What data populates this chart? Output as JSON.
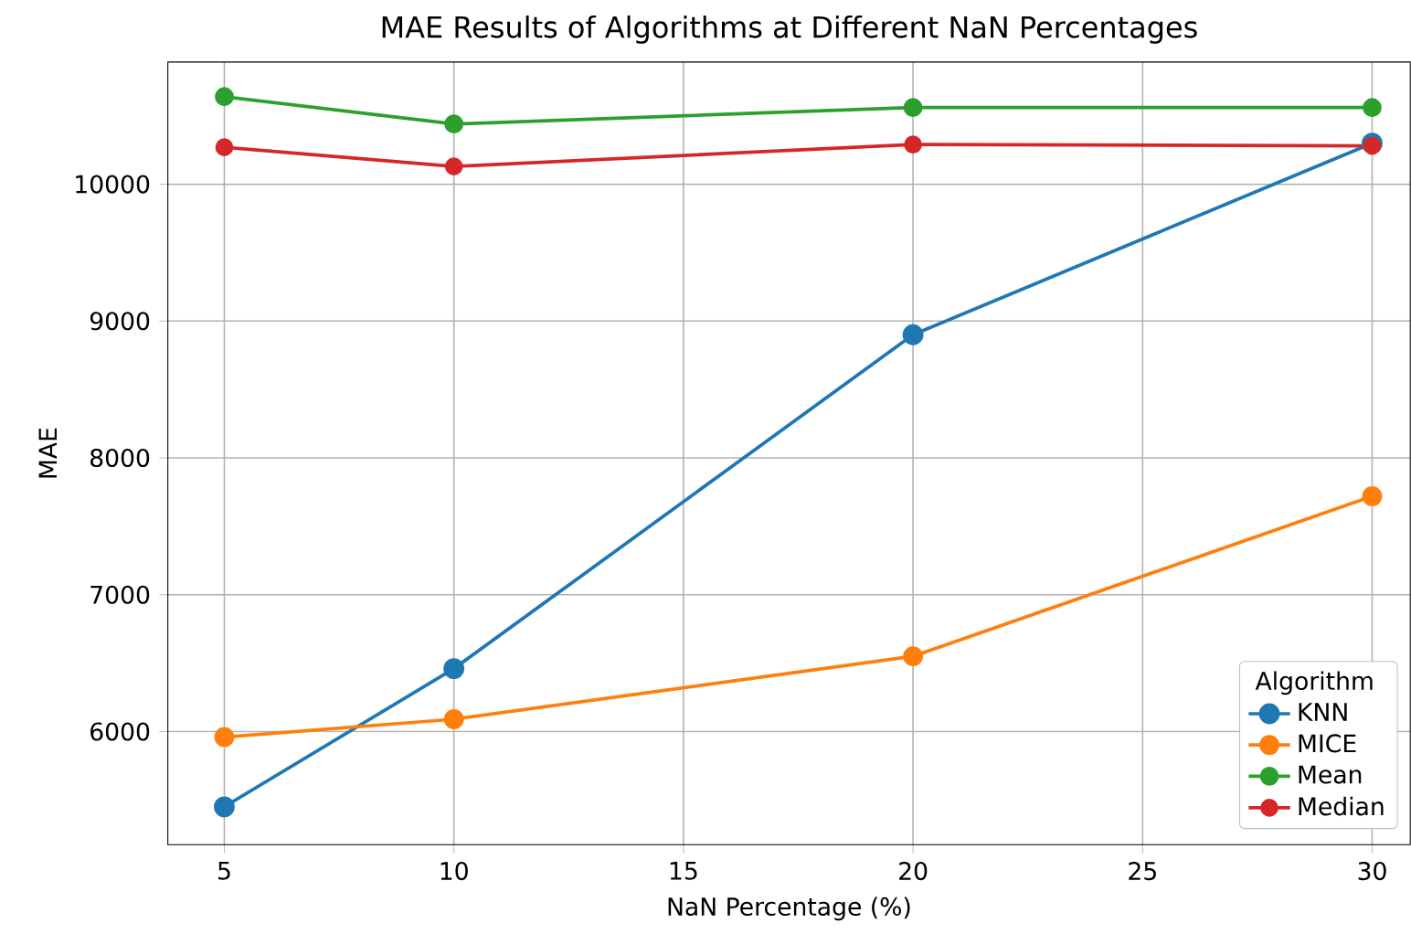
{
  "chart_data": {
    "type": "line",
    "title": "MAE Results of Algorithms at Different NaN Percentages",
    "xlabel": "NaN Percentage (%)",
    "ylabel": "MAE",
    "legend_title": "Algorithm",
    "x": [
      5,
      10,
      20,
      30
    ],
    "series": [
      {
        "name": "KNN",
        "color": "#1f77b4",
        "values": [
          5450,
          6460,
          8900,
          10300
        ]
      },
      {
        "name": "MICE",
        "color": "#ff7f0e",
        "values": [
          5960,
          6090,
          6550,
          7720
        ]
      },
      {
        "name": "Mean",
        "color": "#2ca02c",
        "values": [
          10640,
          10440,
          10560,
          10560
        ]
      },
      {
        "name": "Median",
        "color": "#d62728",
        "values": [
          10270,
          10130,
          10290,
          10280
        ]
      }
    ],
    "xlim": [
      3.77,
      30.83
    ],
    "ylim": [
      5173,
      10893
    ],
    "xticks": [
      5,
      10,
      15,
      20,
      25,
      30
    ],
    "yticks": [
      6000,
      7000,
      8000,
      9000,
      10000
    ],
    "grid": true,
    "legend": "bottom right",
    "marker": "circle",
    "line_style": "solid"
  }
}
